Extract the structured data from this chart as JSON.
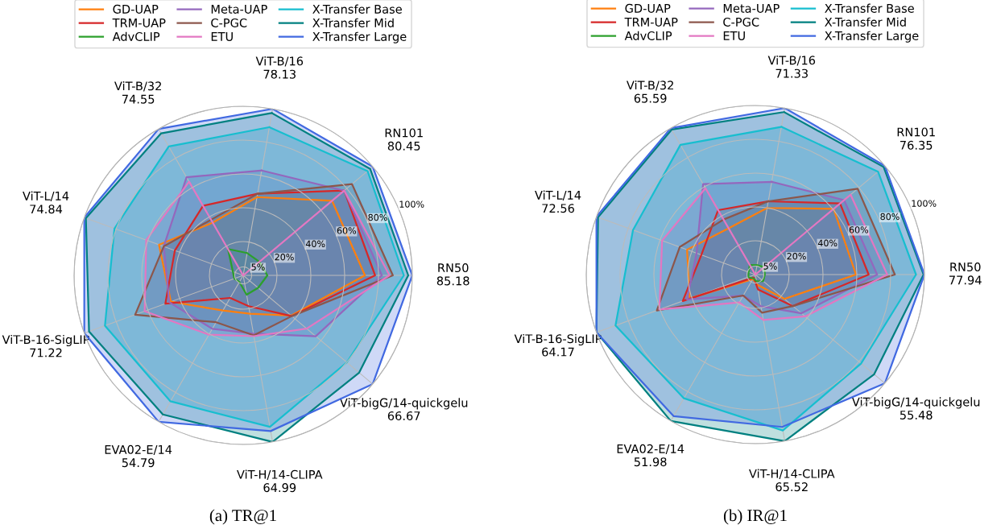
{
  "chart_data": [
    {
      "type": "radar",
      "title": "(a) TR@1",
      "categories": [
        "ViT-B/16\n78.13",
        "RN101\n80.45",
        "RN50\n85.18",
        "ViT-bigG/14-quickgelu\n66.67",
        "ViT-H/14-CLIPA\n64.99",
        "EVA02-E/14\n54.79",
        "ViT-B-16-SigLIP\n71.22",
        "ViT-L/14\n74.84",
        "ViT-B/32\n74.55"
      ],
      "ylim": [
        0,
        100
      ],
      "yticks": [
        {
          "value": 5,
          "label": "5%"
        },
        {
          "value": 20,
          "label": "20%"
        },
        {
          "value": 40,
          "label": "40%"
        },
        {
          "value": 60,
          "label": "60%"
        },
        {
          "value": 80,
          "label": "80%"
        },
        {
          "value": 100,
          "label": "100%"
        }
      ],
      "grid": true,
      "legend": "top",
      "series": [
        {
          "name": "GD-UAP",
          "color": "#ff7f0e",
          "values": [
            47,
            68.6,
            72,
            37,
            23,
            24,
            45.5,
            53,
            36
          ]
        },
        {
          "name": "TRM-UAP",
          "color": "#d62728",
          "values": [
            49,
            78,
            78,
            37.5,
            18.5,
            15.4,
            49,
            43,
            47.5
          ]
        },
        {
          "name": "AdvCLIP",
          "color": "#2ca02c",
          "values": [
            13.4,
            12.5,
            14.3,
            11.5,
            11.6,
            4.5,
            5.6,
            6.5,
            18
          ]
        },
        {
          "name": "Meta-UAP",
          "color": "#9467bd",
          "values": [
            63,
            78,
            82,
            56,
            35,
            36.5,
            46.5,
            50,
            67
          ]
        },
        {
          "name": "C-PGC",
          "color": "#8c564b",
          "values": [
            49,
            84,
            88.5,
            37.5,
            36,
            32,
            68,
            50,
            38
          ]
        },
        {
          "name": "ETU",
          "color": "#e377c2",
          "values": [
            0,
            78,
            86.5,
            49,
            36.5,
            40.5,
            62,
            61,
            64
          ]
        },
        {
          "name": "X-Transfer Base",
          "color": "#17becf",
          "values": [
            89,
            96,
            95,
            80,
            91,
            86,
            87,
            81,
            88
          ]
        },
        {
          "name": "X-Transfer Mid",
          "color": "#008080",
          "values": [
            97.5,
            98,
            97.6,
            89.5,
            100,
            95,
            97,
            99,
            97
          ]
        },
        {
          "name": "X-Transfer Large",
          "color": "#4169e1",
          "values": [
            100,
            100,
            100,
            100,
            93.5,
            100,
            100,
            100,
            100
          ]
        }
      ]
    },
    {
      "type": "radar",
      "title": "(b) IR@1",
      "categories": [
        "ViT-B/16\n71.33",
        "RN101\n76.35",
        "RN50\n77.94",
        "ViT-bigG/14-quickgelu\n55.48",
        "ViT-H/14-CLIPA\n65.52",
        "EVA02-E/14\n51.98",
        "ViT-B-16-SigLIP\n64.17",
        "ViT-L/14\n72.56",
        "ViT-B/32\n65.59"
      ],
      "ylim": [
        0,
        100
      ],
      "yticks": [
        {
          "value": 5,
          "label": "5%"
        },
        {
          "value": 20,
          "label": "20%"
        },
        {
          "value": 40,
          "label": "40%"
        },
        {
          "value": 60,
          "label": "60%"
        },
        {
          "value": 80,
          "label": "80%"
        },
        {
          "value": 100,
          "label": "100%"
        }
      ],
      "grid": true,
      "legend": "top",
      "series": [
        {
          "name": "GD-UAP",
          "color": "#ff7f0e",
          "values": [
            40,
            60.4,
            59.5,
            22.4,
            6,
            3.1,
            41.3,
            43,
            31.6
          ]
        },
        {
          "name": "TRM-UAP",
          "color": "#d62728",
          "values": [
            44,
            65.4,
            67,
            29,
            8.9,
            2,
            45.7,
            34,
            44
          ]
        },
        {
          "name": "AdvCLIP",
          "color": "#2ca02c",
          "values": [
            5.6,
            6.9,
            5.6,
            6,
            4,
            2.6,
            4.5,
            4.2,
            6.6
          ]
        },
        {
          "name": "Meta-UAP",
          "color": "#9467bd",
          "values": [
            55.7,
            68.5,
            72,
            35.6,
            19,
            14.4,
            43,
            37,
            61.8
          ]
        },
        {
          "name": "C-PGC",
          "color": "#8c564b",
          "values": [
            44,
            79,
            82.5,
            29,
            22.9,
            14.3,
            62,
            47.6,
            37.6
          ]
        },
        {
          "name": "ETU",
          "color": "#e377c2",
          "values": [
            0,
            73.5,
            78,
            38.5,
            27.3,
            19,
            60.4,
            58.7,
            59
          ]
        },
        {
          "name": "X-Transfer Base",
          "color": "#17becf",
          "values": [
            88.7,
            94.7,
            95,
            81.7,
            93.6,
            84.5,
            88,
            77,
            88.6
          ]
        },
        {
          "name": "X-Transfer Mid",
          "color": "#008080",
          "values": [
            97.6,
            99,
            99.5,
            91.7,
            100,
            100,
            100,
            99,
            99
          ]
        },
        {
          "name": "X-Transfer Large",
          "color": "#4169e1",
          "values": [
            100,
            100,
            100,
            100,
            91.5,
            96.7,
            100,
            100,
            100
          ]
        }
      ]
    }
  ]
}
